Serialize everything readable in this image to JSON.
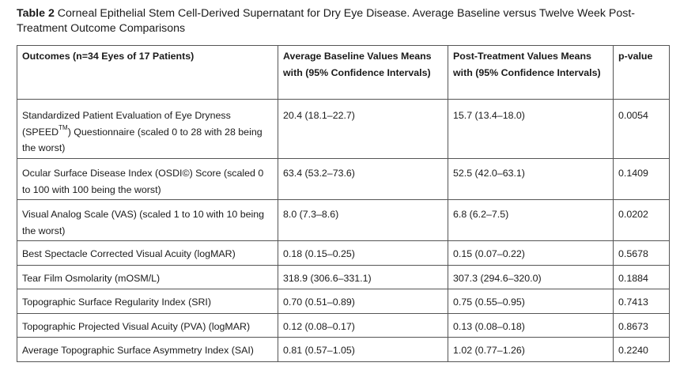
{
  "caption": {
    "label": "Table 2",
    "text": "Corneal Epithelial Stem Cell-Derived Supernatant for Dry Eye Disease. Average Baseline versus Twelve Week Post-Treatment Outcome Comparisons"
  },
  "table": {
    "headers": [
      "Outcomes (n=34 Eyes of 17 Patients)",
      "Average Baseline Values Means with (95% Confidence Intervals)",
      "Post-Treatment Values Means with (95% Confidence Intervals)",
      "p-value"
    ],
    "rows": [
      {
        "outcome_pre": "Standardized Patient Evaluation of Eye Dryness (SPEED",
        "outcome_sup": "TM",
        "outcome_post": ") Questionnaire (scaled 0 to 28 with 28 being the worst)",
        "baseline": "20.4 (18.1–22.7)",
        "post": "15.7 (13.4–18.0)",
        "p": "0.0054"
      },
      {
        "outcome": "Ocular Surface Disease Index (OSDI©) Score (scaled 0 to 100 with 100 being the worst)",
        "baseline": "63.4 (53.2–73.6)",
        "post": "52.5 (42.0–63.1)",
        "p": "0.1409"
      },
      {
        "outcome": "Visual Analog Scale (VAS) (scaled 1 to 10 with 10 being the worst)",
        "baseline": "8.0 (7.3–8.6)",
        "post": "6.8 (6.2–7.5)",
        "p": "0.0202"
      },
      {
        "outcome": "Best Spectacle Corrected Visual Acuity (logMAR)",
        "baseline": "0.18 (0.15–0.25)",
        "post": "0.15 (0.07–0.22)",
        "p": "0.5678"
      },
      {
        "outcome": "Tear Film Osmolarity (mOSM/L)",
        "baseline": "318.9 (306.6–331.1)",
        "post": "307.3 (294.6–320.0)",
        "p": "0.1884"
      },
      {
        "outcome": "Topographic Surface Regularity Index (SRI)",
        "baseline": "0.70 (0.51–0.89)",
        "post": "0.75 (0.55–0.95)",
        "p": "0.7413"
      },
      {
        "outcome": "Topographic Projected Visual Acuity (PVA) (logMAR)",
        "baseline": "0.12 (0.08–0.17)",
        "post": "0.13 (0.08–0.18)",
        "p": "0.8673"
      },
      {
        "outcome": "Average Topographic Surface Asymmetry Index (SAI)",
        "baseline": "0.81 (0.57–1.05)",
        "post": "1.02 (0.77–1.26)",
        "p": "0.2240"
      }
    ]
  }
}
